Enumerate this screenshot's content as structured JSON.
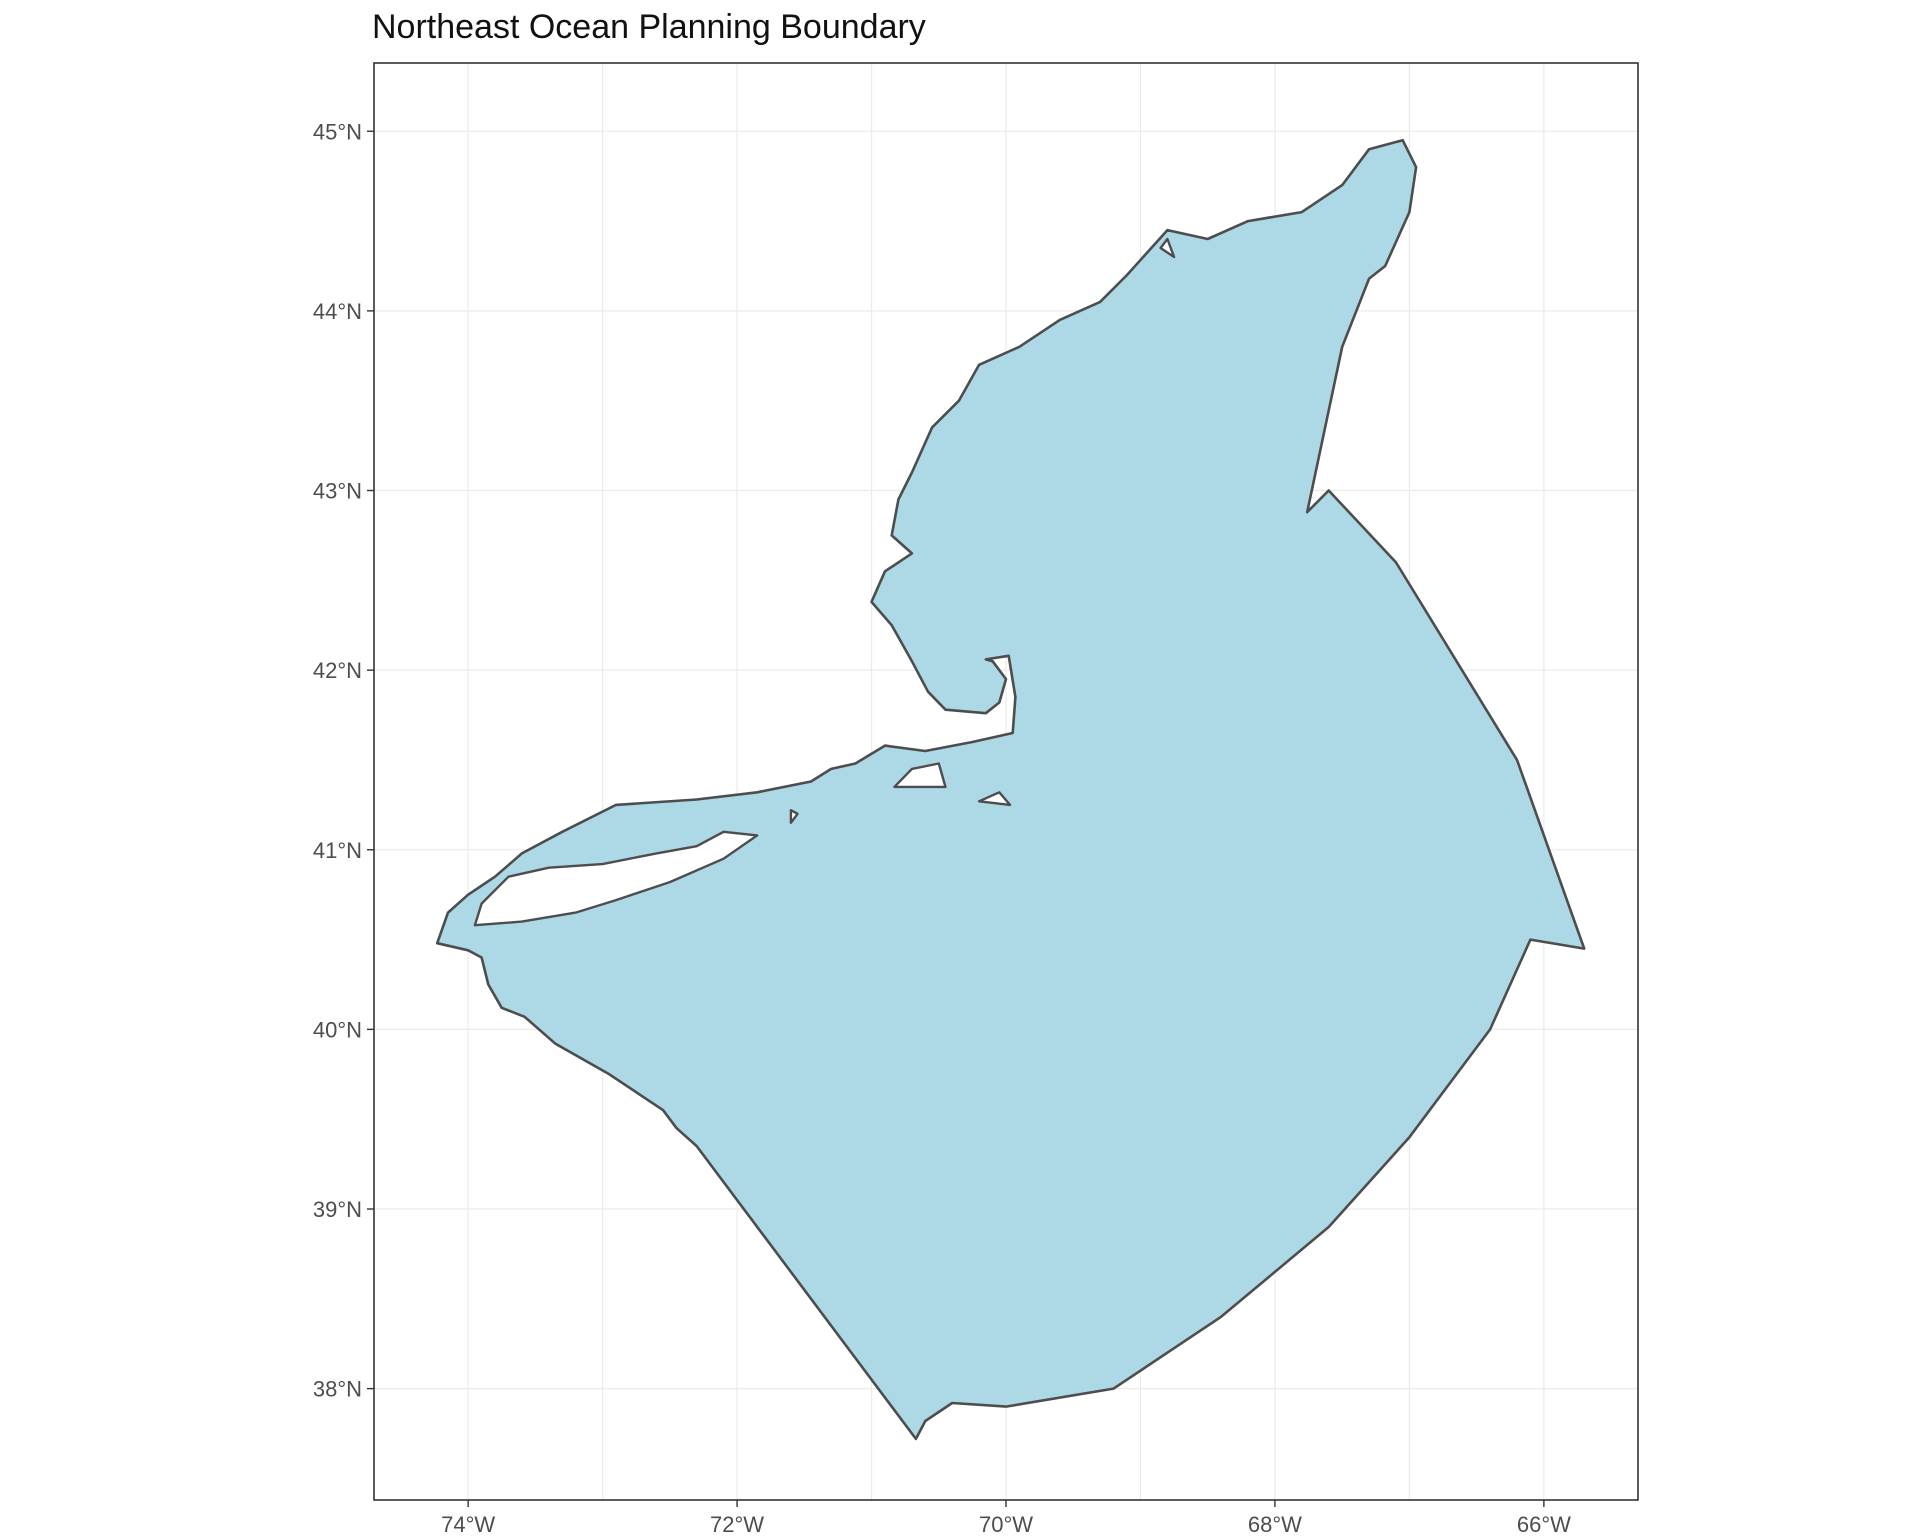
{
  "title": "Northeast Ocean Planning Boundary",
  "chart_data": {
    "type": "map",
    "title": "Northeast Ocean Planning Boundary",
    "xlabel": "",
    "ylabel": "",
    "xlim": [
      -74.7,
      -65.3
    ],
    "ylim": [
      37.38,
      45.38
    ],
    "x_ticks": [
      {
        "value": -74,
        "label": "74°W"
      },
      {
        "value": -72,
        "label": "72°W"
      },
      {
        "value": -70,
        "label": "70°W"
      },
      {
        "value": -68,
        "label": "68°W"
      },
      {
        "value": -66,
        "label": "66°W"
      }
    ],
    "y_ticks": [
      {
        "value": 45,
        "label": "45°N"
      },
      {
        "value": 44,
        "label": "44°N"
      },
      {
        "value": 43,
        "label": "43°N"
      },
      {
        "value": 42,
        "label": "42°N"
      },
      {
        "value": 41,
        "label": "41°N"
      },
      {
        "value": 40,
        "label": "40°N"
      },
      {
        "value": 39,
        "label": "39°N"
      },
      {
        "value": 38,
        "label": "38°N"
      }
    ],
    "grid": true,
    "fill_color": "#add8e6",
    "stroke_color": "#4d4d4d",
    "boundary": [
      [
        -74.23,
        40.48
      ],
      [
        -74.0,
        40.44
      ],
      [
        -73.9,
        40.4
      ],
      [
        -73.85,
        40.25
      ],
      [
        -73.75,
        40.12
      ],
      [
        -73.58,
        40.07
      ],
      [
        -73.35,
        39.92
      ],
      [
        -72.95,
        39.75
      ],
      [
        -72.55,
        39.55
      ],
      [
        -72.45,
        39.45
      ],
      [
        -72.3,
        39.35
      ],
      [
        -70.67,
        37.72
      ],
      [
        -70.6,
        37.82
      ],
      [
        -70.4,
        37.92
      ],
      [
        -70.0,
        37.9
      ],
      [
        -69.2,
        38.0
      ],
      [
        -68.4,
        38.4
      ],
      [
        -67.6,
        38.9
      ],
      [
        -67.0,
        39.4
      ],
      [
        -66.4,
        40.0
      ],
      [
        -66.1,
        40.5
      ],
      [
        -65.7,
        40.45
      ],
      [
        -66.2,
        41.5
      ],
      [
        -67.1,
        42.6
      ],
      [
        -67.6,
        43.0
      ],
      [
        -67.76,
        42.88
      ],
      [
        -67.5,
        43.8
      ],
      [
        -67.3,
        44.18
      ],
      [
        -67.18,
        44.25
      ],
      [
        -67.0,
        44.55
      ],
      [
        -66.95,
        44.8
      ],
      [
        -67.05,
        44.95
      ],
      [
        -67.3,
        44.9
      ],
      [
        -67.5,
        44.7
      ],
      [
        -67.8,
        44.55
      ],
      [
        -68.2,
        44.5
      ],
      [
        -68.5,
        44.4
      ],
      [
        -68.8,
        44.45
      ],
      [
        -69.1,
        44.2
      ],
      [
        -69.3,
        44.05
      ],
      [
        -69.6,
        43.95
      ],
      [
        -69.9,
        43.8
      ],
      [
        -70.2,
        43.7
      ],
      [
        -70.35,
        43.5
      ],
      [
        -70.55,
        43.35
      ],
      [
        -70.7,
        43.1
      ],
      [
        -70.8,
        42.95
      ],
      [
        -70.85,
        42.75
      ],
      [
        -70.7,
        42.65
      ],
      [
        -70.9,
        42.55
      ],
      [
        -71.0,
        42.38
      ],
      [
        -70.85,
        42.25
      ],
      [
        -70.7,
        42.05
      ],
      [
        -70.58,
        41.88
      ],
      [
        -70.45,
        41.78
      ],
      [
        -70.15,
        41.76
      ],
      [
        -70.05,
        41.82
      ],
      [
        -70.0,
        41.95
      ],
      [
        -70.1,
        42.05
      ],
      [
        -70.15,
        42.06
      ],
      [
        -69.98,
        42.08
      ],
      [
        -69.93,
        41.85
      ],
      [
        -69.95,
        41.65
      ],
      [
        -70.25,
        41.6
      ],
      [
        -70.6,
        41.55
      ],
      [
        -70.9,
        41.58
      ],
      [
        -71.12,
        41.48
      ],
      [
        -71.3,
        41.45
      ],
      [
        -71.45,
        41.38
      ],
      [
        -71.85,
        41.32
      ],
      [
        -72.3,
        41.28
      ],
      [
        -72.9,
        41.25
      ],
      [
        -73.3,
        41.1
      ],
      [
        -73.6,
        40.98
      ],
      [
        -73.8,
        40.85
      ],
      [
        -74.0,
        40.75
      ],
      [
        -74.15,
        40.65
      ],
      [
        -74.23,
        40.48
      ]
    ],
    "land_masses": [
      [
        [
          -73.95,
          40.58
        ],
        [
          -73.6,
          40.6
        ],
        [
          -73.2,
          40.65
        ],
        [
          -72.9,
          40.72
        ],
        [
          -72.5,
          40.82
        ],
        [
          -72.1,
          40.95
        ],
        [
          -71.85,
          41.08
        ],
        [
          -72.1,
          41.1
        ],
        [
          -72.3,
          41.02
        ],
        [
          -72.6,
          40.98
        ],
        [
          -73.0,
          40.92
        ],
        [
          -73.4,
          40.9
        ],
        [
          -73.7,
          40.85
        ],
        [
          -73.9,
          40.7
        ],
        [
          -73.95,
          40.58
        ]
      ],
      [
        [
          -70.83,
          41.35
        ],
        [
          -70.45,
          41.35
        ],
        [
          -70.5,
          41.48
        ],
        [
          -70.7,
          41.45
        ],
        [
          -70.83,
          41.35
        ]
      ],
      [
        [
          -70.2,
          41.27
        ],
        [
          -69.97,
          41.25
        ],
        [
          -70.05,
          41.32
        ],
        [
          -70.2,
          41.27
        ]
      ],
      [
        [
          -71.6,
          41.15
        ],
        [
          -71.55,
          41.2
        ],
        [
          -71.6,
          41.22
        ],
        [
          -71.6,
          41.15
        ]
      ],
      [
        [
          -68.85,
          44.35
        ],
        [
          -68.75,
          44.3
        ],
        [
          -68.8,
          44.4
        ],
        [
          -68.85,
          44.35
        ]
      ]
    ]
  }
}
